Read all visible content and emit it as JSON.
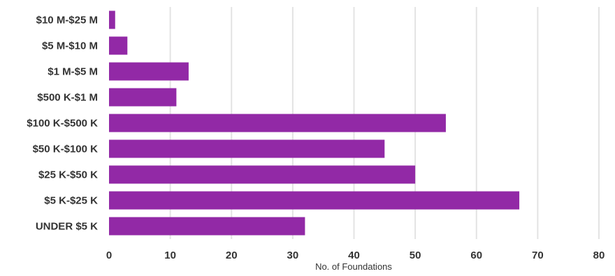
{
  "chart_data": {
    "type": "bar",
    "orientation": "horizontal",
    "categories": [
      "$10 M-$25 M",
      "$5 M-$10 M",
      "$1 M-$5 M",
      "$500 K-$1 M",
      "$100 K-$500 K",
      "$50 K-$100 K",
      "$25 K-$50 K",
      "$5 K-$25 K",
      "UNDER $5 K"
    ],
    "values": [
      1,
      3,
      13,
      11,
      55,
      45,
      50,
      67,
      32
    ],
    "title": "",
    "xlabel": "No. of Foundations",
    "ylabel": "",
    "xlim": [
      0,
      80
    ],
    "xticks": [
      "0",
      "10",
      "20",
      "30",
      "40",
      "50",
      "60",
      "70",
      "80"
    ],
    "grid": true,
    "legend": "none",
    "bar_color": "#9229a6",
    "grid_color": "#e3e3e3",
    "text_color": "#333333"
  }
}
